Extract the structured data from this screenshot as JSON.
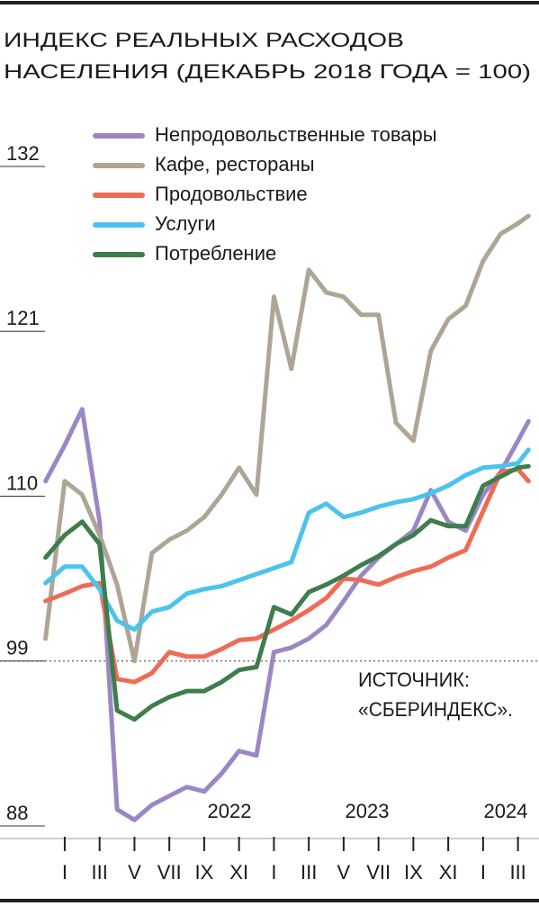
{
  "chart_data": {
    "type": "line",
    "title": [
      "ИНДЕКС РЕАЛЬНЫХ РАСХОДОВ",
      "НАСЕЛЕНИЯ (ДЕКАБРЬ 2018 ГОДА = 100)"
    ],
    "annotation": [
      "ИСТОЧНИК:",
      "«СБЕРИНДЕКС»."
    ],
    "year_labels": [
      "2022",
      "2023",
      "2024"
    ],
    "x": [
      -1.1,
      0,
      1,
      2,
      3,
      4,
      5,
      6,
      7,
      8,
      9,
      10,
      11,
      12,
      13,
      14,
      15,
      16,
      17,
      18,
      19,
      20,
      21,
      22,
      23,
      24,
      25,
      26,
      26.6
    ],
    "xlim": [
      -1.2,
      27
    ],
    "xticks": [
      {
        "value": 0,
        "label": "I"
      },
      {
        "value": 2,
        "label": "III"
      },
      {
        "value": 4,
        "label": "V"
      },
      {
        "value": 6,
        "label": "VII"
      },
      {
        "value": 8,
        "label": "IX"
      },
      {
        "value": 10,
        "label": "XI"
      },
      {
        "value": 12,
        "label": "I"
      },
      {
        "value": 14,
        "label": "III"
      },
      {
        "value": 16,
        "label": "V"
      },
      {
        "value": 18,
        "label": "VII"
      },
      {
        "value": 20,
        "label": "IX"
      },
      {
        "value": 22,
        "label": "XI"
      },
      {
        "value": 24,
        "label": "I"
      },
      {
        "value": 26,
        "label": "III"
      }
    ],
    "ylim": [
      88,
      132
    ],
    "yticks": [
      88,
      99,
      110,
      121,
      132
    ],
    "reference_line": 99,
    "series": [
      {
        "name": "Непродовольственные товары",
        "color": "#9b87c4",
        "values": [
          111,
          113.4,
          115.8,
          108.3,
          89.1,
          88.4,
          89.4,
          90,
          90.6,
          90.3,
          91.5,
          93,
          92.7,
          99.6,
          99.9,
          100.5,
          101.4,
          103,
          104.7,
          105.9,
          106.8,
          107.7,
          110.4,
          108.3,
          107.7,
          110.1,
          111.6,
          113.7,
          115
        ]
      },
      {
        "name": "Кафе, рестораны",
        "color": "#aea595",
        "values": [
          100.5,
          111,
          110.1,
          107.4,
          104.1,
          99,
          106.2,
          107.1,
          107.7,
          108.6,
          110.1,
          111.9,
          110.1,
          123.3,
          118.5,
          125.1,
          123.6,
          123.3,
          122.1,
          122.1,
          114.9,
          113.7,
          119.7,
          121.8,
          122.7,
          125.7,
          127.5,
          128.2,
          128.7
        ]
      },
      {
        "name": "Продовольствие",
        "color": "#ef6b55",
        "values": [
          103,
          103.5,
          104,
          104.2,
          97.8,
          97.6,
          98.2,
          99.6,
          99.3,
          99.3,
          99.8,
          100.4,
          100.5,
          101.1,
          101.7,
          102.4,
          103.2,
          104.5,
          104.4,
          104.1,
          104.6,
          105,
          105.3,
          105.9,
          106.4,
          109,
          111.6,
          111.8,
          111
        ]
      },
      {
        "name": "Услуги",
        "color": "#4cc3ec",
        "values": [
          104.2,
          105.3,
          105.3,
          103.8,
          101.7,
          101.1,
          102.3,
          102.6,
          103.5,
          103.8,
          104,
          104.4,
          104.8,
          105.2,
          105.6,
          108.9,
          109.5,
          108.6,
          108.9,
          109.3,
          109.6,
          109.8,
          110.2,
          110.7,
          111.4,
          111.9,
          112,
          112.2,
          113.1
        ]
      },
      {
        "name": "Потребление",
        "color": "#3e7d4c",
        "values": [
          105.9,
          107.4,
          108.3,
          106.8,
          95.7,
          95.1,
          96,
          96.6,
          97,
          97,
          97.6,
          98.4,
          98.6,
          102.6,
          102.1,
          103.6,
          104.1,
          104.7,
          105.4,
          106,
          106.8,
          107.4,
          108.4,
          108,
          108,
          110.7,
          111.3,
          111.9,
          112
        ]
      }
    ]
  }
}
